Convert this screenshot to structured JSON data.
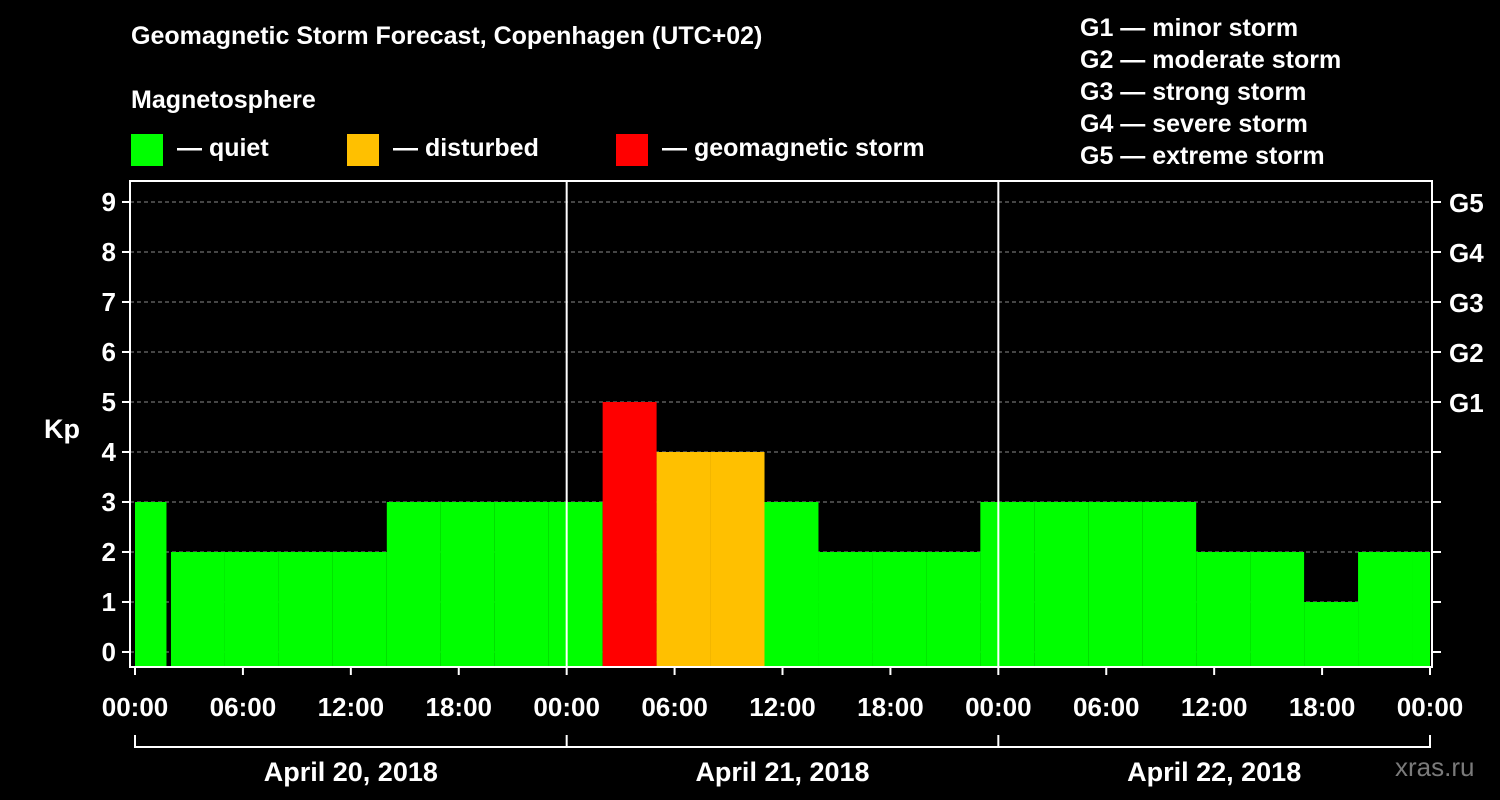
{
  "header": {
    "title": "Geomagnetic Storm Forecast, Copenhagen (UTC+02)",
    "subtitle": "Magnetosphere"
  },
  "legend": [
    {
      "label": "— quiet",
      "color": "#00ff00"
    },
    {
      "label": "— disturbed",
      "color": "#ffc000"
    },
    {
      "label": "— geomagnetic storm",
      "color": "#ff0000"
    }
  ],
  "g_scale_legend": [
    "G1 — minor storm",
    "G2 — moderate storm",
    "G3 — strong storm",
    "G4 — severe storm",
    "G5 — extreme storm"
  ],
  "watermark": "xras.ru",
  "chart_data": {
    "type": "bar",
    "title": "Geomagnetic Storm Forecast, Copenhagen (UTC+02)",
    "ylabel": "Kp",
    "ylim": [
      0,
      9
    ],
    "yticks": [
      0,
      1,
      2,
      3,
      4,
      5,
      6,
      7,
      8,
      9
    ],
    "right_axis_labels": [
      {
        "kp": 5,
        "label": "G1"
      },
      {
        "kp": 6,
        "label": "G2"
      },
      {
        "kp": 7,
        "label": "G3"
      },
      {
        "kp": 8,
        "label": "G4"
      },
      {
        "kp": 9,
        "label": "G5"
      }
    ],
    "xlim_hours": [
      0,
      72
    ],
    "xtick_labels": [
      "00:00",
      "06:00",
      "12:00",
      "18:00",
      "00:00",
      "06:00",
      "12:00",
      "18:00",
      "00:00",
      "06:00",
      "12:00",
      "18:00",
      "00:00"
    ],
    "days": [
      "April 20, 2018",
      "April 21, 2018",
      "April 22, 2018"
    ],
    "grid": true,
    "colors": {
      "quiet": "#00ff00",
      "disturbed": "#ffc000",
      "storm": "#ff0000"
    },
    "bars": [
      {
        "start": 0,
        "end": 1.75,
        "value": 3,
        "status": "quiet"
      },
      {
        "start": 2,
        "end": 5,
        "value": 2,
        "status": "quiet"
      },
      {
        "start": 5,
        "end": 8,
        "value": 2,
        "status": "quiet"
      },
      {
        "start": 8,
        "end": 11,
        "value": 2,
        "status": "quiet"
      },
      {
        "start": 11,
        "end": 14,
        "value": 2,
        "status": "quiet"
      },
      {
        "start": 14,
        "end": 17,
        "value": 3,
        "status": "quiet"
      },
      {
        "start": 17,
        "end": 20,
        "value": 3,
        "status": "quiet"
      },
      {
        "start": 20,
        "end": 23,
        "value": 3,
        "status": "quiet"
      },
      {
        "start": 23,
        "end": 26,
        "value": 3,
        "status": "quiet"
      },
      {
        "start": 26,
        "end": 29,
        "value": 5,
        "status": "storm"
      },
      {
        "start": 29,
        "end": 32,
        "value": 4,
        "status": "disturbed"
      },
      {
        "start": 32,
        "end": 35,
        "value": 4,
        "status": "disturbed"
      },
      {
        "start": 35,
        "end": 38,
        "value": 3,
        "status": "quiet"
      },
      {
        "start": 38,
        "end": 41,
        "value": 2,
        "status": "quiet"
      },
      {
        "start": 41,
        "end": 44,
        "value": 2,
        "status": "quiet"
      },
      {
        "start": 44,
        "end": 47,
        "value": 2,
        "status": "quiet"
      },
      {
        "start": 47,
        "end": 50,
        "value": 3,
        "status": "quiet"
      },
      {
        "start": 50,
        "end": 53,
        "value": 3,
        "status": "quiet"
      },
      {
        "start": 53,
        "end": 56,
        "value": 3,
        "status": "quiet"
      },
      {
        "start": 56,
        "end": 59,
        "value": 3,
        "status": "quiet"
      },
      {
        "start": 59,
        "end": 62,
        "value": 2,
        "status": "quiet"
      },
      {
        "start": 62,
        "end": 65,
        "value": 2,
        "status": "quiet"
      },
      {
        "start": 65,
        "end": 68,
        "value": 1,
        "status": "quiet"
      },
      {
        "start": 68,
        "end": 71,
        "value": 2,
        "status": "quiet"
      },
      {
        "start": 71,
        "end": 72,
        "value": 2,
        "status": "quiet"
      }
    ]
  }
}
